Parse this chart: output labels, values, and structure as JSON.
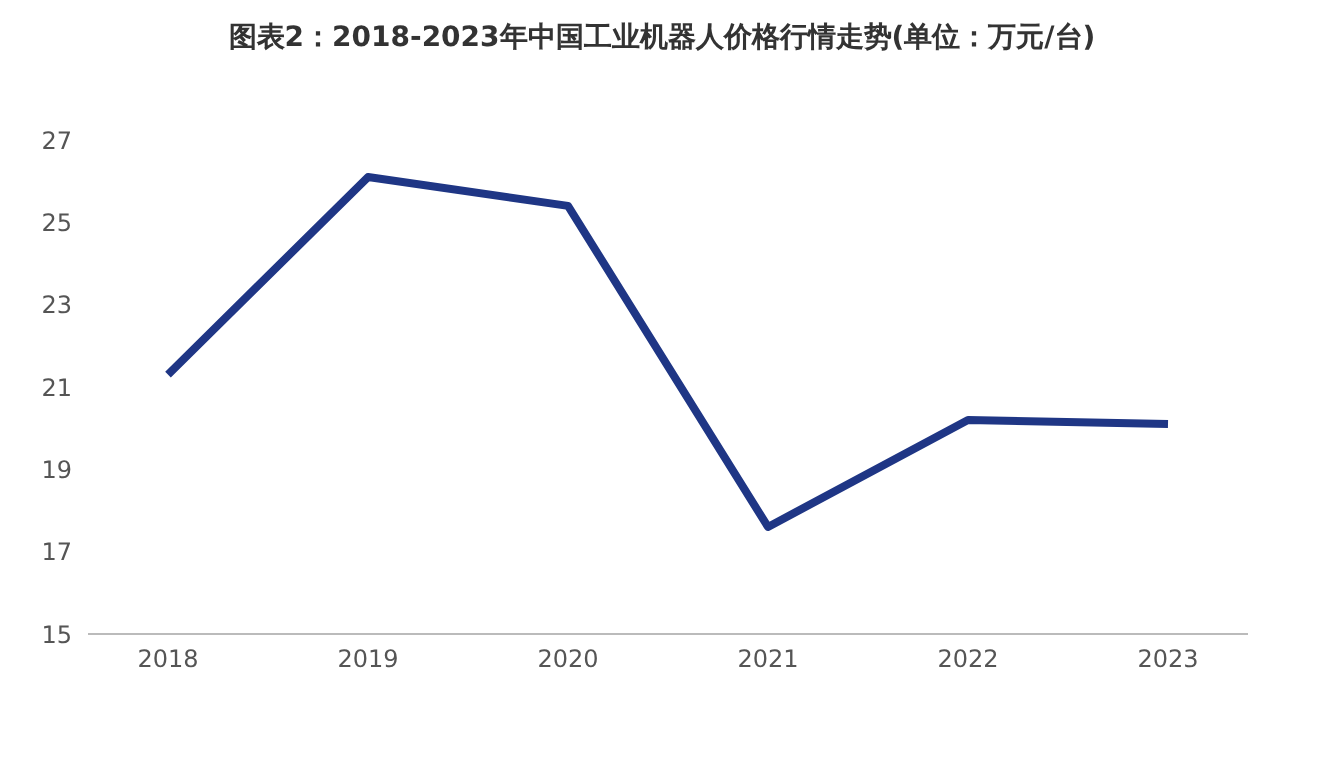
{
  "chart_data": {
    "type": "line",
    "title": "图表2：2018-2023年中国工业机器人价格行情走势(单位：万元/台)",
    "categories": [
      "2018",
      "2019",
      "2020",
      "2021",
      "2022",
      "2023"
    ],
    "series": [
      {
        "color": "#1f3685",
        "values": [
          21.3,
          26.1,
          25.4,
          17.6,
          20.2,
          20.1
        ]
      }
    ],
    "ylim": [
      15,
      27
    ],
    "yticks": [
      15,
      17,
      19,
      21,
      23,
      25,
      27
    ],
    "grid": false,
    "legend": false,
    "marker": "none",
    "line_style": "solid"
  }
}
